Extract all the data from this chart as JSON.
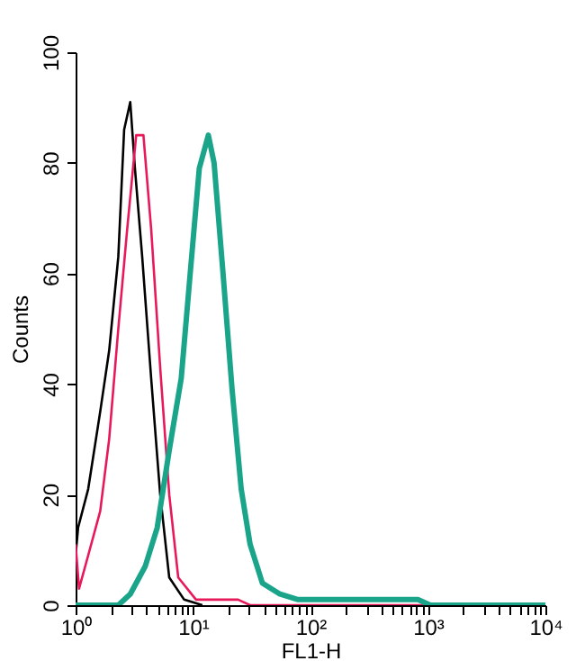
{
  "chart_data": {
    "type": "line",
    "xlabel": "FL1-H",
    "ylabel": "Counts",
    "log": "x",
    "xlim": [
      1,
      10000
    ],
    "ylim": [
      0,
      100
    ],
    "xticks": [
      {
        "value": 1,
        "label": "10⁰"
      },
      {
        "value": 2,
        "label": null
      },
      {
        "value": 3,
        "label": null
      },
      {
        "value": 4,
        "label": null
      },
      {
        "value": 5,
        "label": null
      },
      {
        "value": 6,
        "label": null
      },
      {
        "value": 7,
        "label": null
      },
      {
        "value": 8,
        "label": null
      },
      {
        "value": 9,
        "label": null
      },
      {
        "value": 10,
        "label": "10¹"
      },
      {
        "value": 20,
        "label": null
      },
      {
        "value": 30,
        "label": null
      },
      {
        "value": 40,
        "label": null
      },
      {
        "value": 50,
        "label": null
      },
      {
        "value": 60,
        "label": null
      },
      {
        "value": 70,
        "label": null
      },
      {
        "value": 80,
        "label": null
      },
      {
        "value": 90,
        "label": null
      },
      {
        "value": 100,
        "label": "10²"
      },
      {
        "value": 200,
        "label": null
      },
      {
        "value": 300,
        "label": null
      },
      {
        "value": 400,
        "label": null
      },
      {
        "value": 500,
        "label": null
      },
      {
        "value": 600,
        "label": null
      },
      {
        "value": 700,
        "label": null
      },
      {
        "value": 800,
        "label": null
      },
      {
        "value": 900,
        "label": null
      },
      {
        "value": 1000,
        "label": "10³"
      },
      {
        "value": 2000,
        "label": null
      },
      {
        "value": 3000,
        "label": null
      },
      {
        "value": 4000,
        "label": null
      },
      {
        "value": 5000,
        "label": null
      },
      {
        "value": 6000,
        "label": null
      },
      {
        "value": 7000,
        "label": null
      },
      {
        "value": 8000,
        "label": null
      },
      {
        "value": 9000,
        "label": null
      },
      {
        "value": 10000,
        "label": "10⁴"
      }
    ],
    "yticks": [
      0,
      20,
      40,
      60,
      80,
      100
    ],
    "series": [
      {
        "color": "#000000",
        "x": [
          1,
          1.01,
          1.05,
          1.28,
          1.62,
          1.93,
          2.31,
          2.59,
          2.92,
          3.2,
          3.69,
          4.4,
          5.25,
          6.27,
          8.4,
          12
        ],
        "values": [
          63,
          10,
          14,
          21,
          35,
          46,
          63,
          86,
          91,
          79,
          63,
          41,
          20,
          5,
          1,
          0
        ]
      },
      {
        "color": "#e8195a",
        "x": [
          1,
          1.07,
          1.28,
          1.62,
          1.93,
          2.31,
          2.75,
          3.28,
          3.78,
          4.4,
          5.25,
          6.27,
          7.48,
          10.6,
          24.2,
          30.6,
          10000
        ],
        "values": [
          11,
          3,
          9,
          17,
          30,
          50,
          68,
          85,
          85,
          68,
          43,
          20,
          5,
          1,
          1,
          0,
          0
        ]
      },
      {
        "color": "#1aa58a",
        "x": [
          1,
          2.31,
          2.92,
          3.91,
          4.95,
          6.27,
          7.93,
          9.46,
          11.3,
          13.5,
          15.1,
          18,
          21.5,
          25.7,
          30.6,
          38.9,
          55,
          78.5,
          822,
          1050,
          10000
        ],
        "values": [
          0,
          0,
          2,
          7,
          14,
          28,
          41,
          60,
          79,
          85,
          80,
          60,
          39,
          21,
          11,
          4,
          2,
          1,
          1,
          0,
          0
        ]
      }
    ]
  }
}
